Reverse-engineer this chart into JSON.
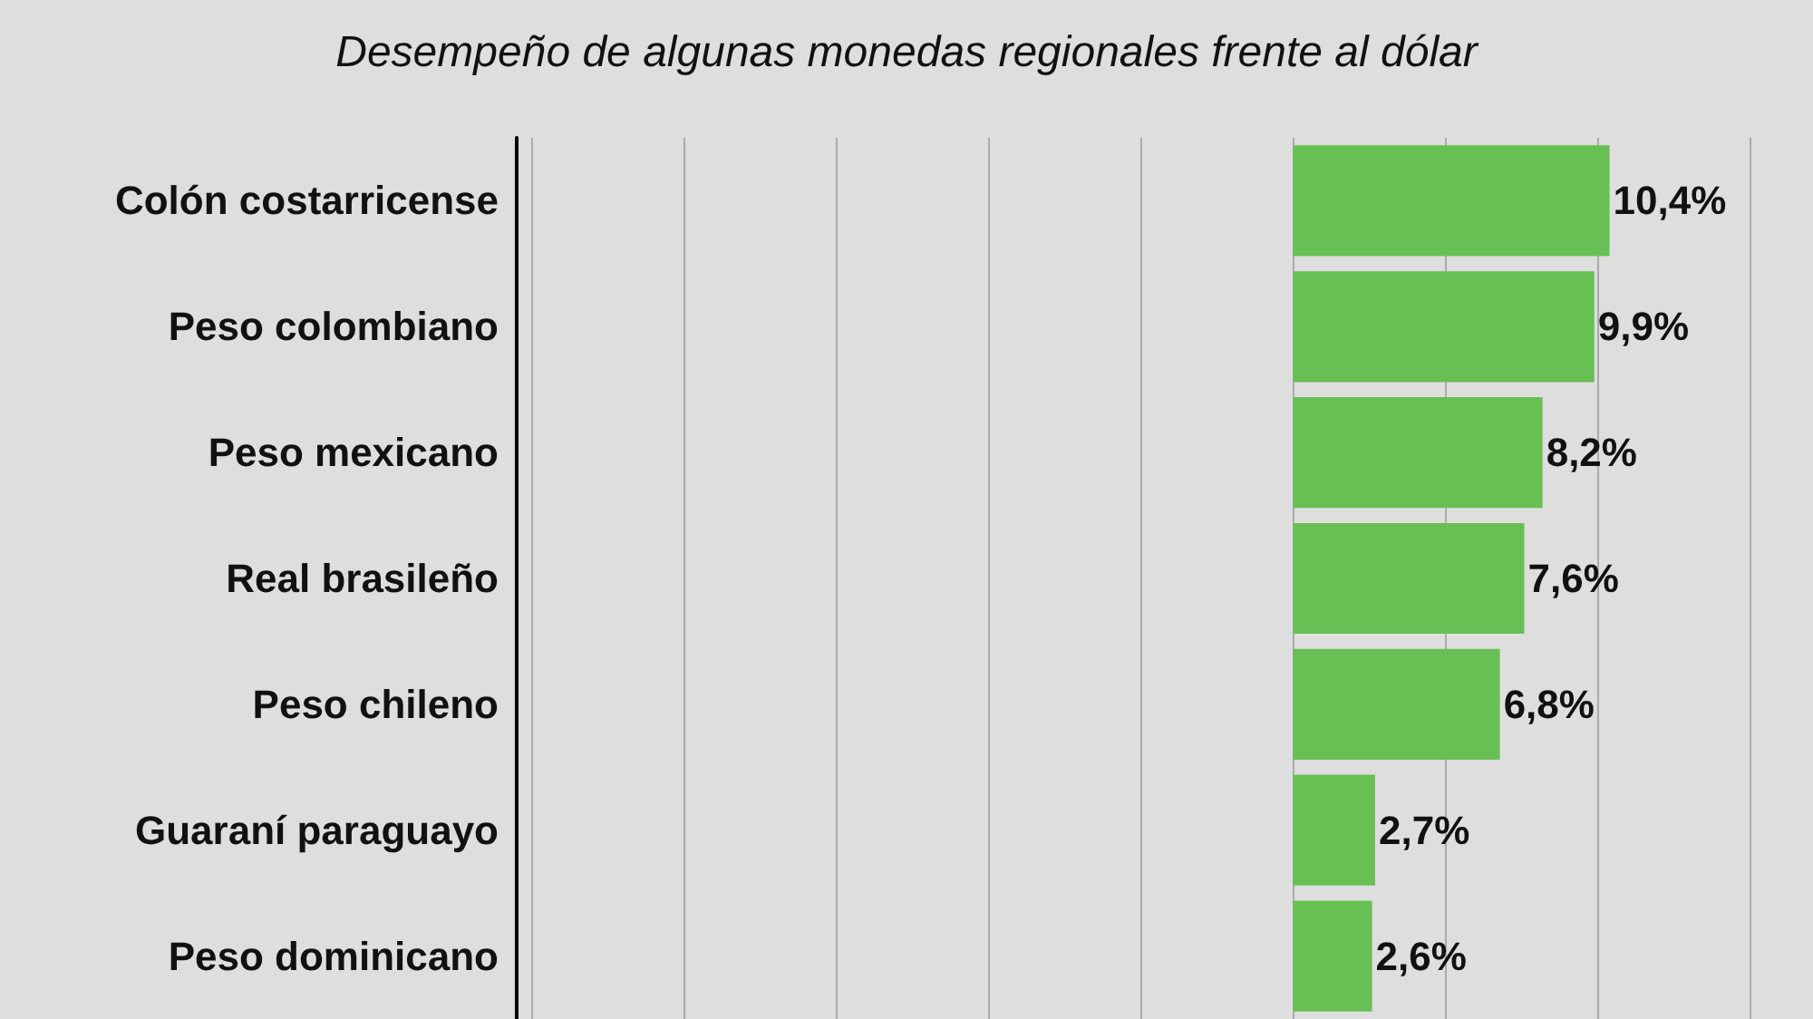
{
  "chart_data": {
    "type": "bar",
    "orientation": "horizontal",
    "title": "Desempeño de algunas monedas regionales frente al dólar",
    "categories": [
      "Colón costarricense",
      "Peso colombiano",
      "Peso mexicano",
      "Real brasileño",
      "Peso chileno",
      "Guaraní paraguayo",
      "Peso dominicano"
    ],
    "values": [
      10.4,
      9.9,
      8.2,
      7.6,
      6.8,
      2.7,
      2.6
    ],
    "value_labels": [
      "10,4%",
      "9,9%",
      "8,2%",
      "7,6%",
      "6,8%",
      "2,7%",
      "2,6%"
    ],
    "color": "#68c055",
    "xlim": [
      -25.5,
      15
    ],
    "xticks": [
      {
        "value": -25,
        "label": null
      },
      {
        "value": -20,
        "label": null
      },
      {
        "value": -15,
        "label": null
      },
      {
        "value": -10,
        "label": null
      },
      {
        "value": -5,
        "label": null
      },
      {
        "value": 0,
        "label": null
      },
      {
        "value": 5,
        "label": null
      },
      {
        "value": 10,
        "label": null
      },
      {
        "value": 15,
        "label": null
      }
    ],
    "grid": "x",
    "tick_labels": "y"
  }
}
